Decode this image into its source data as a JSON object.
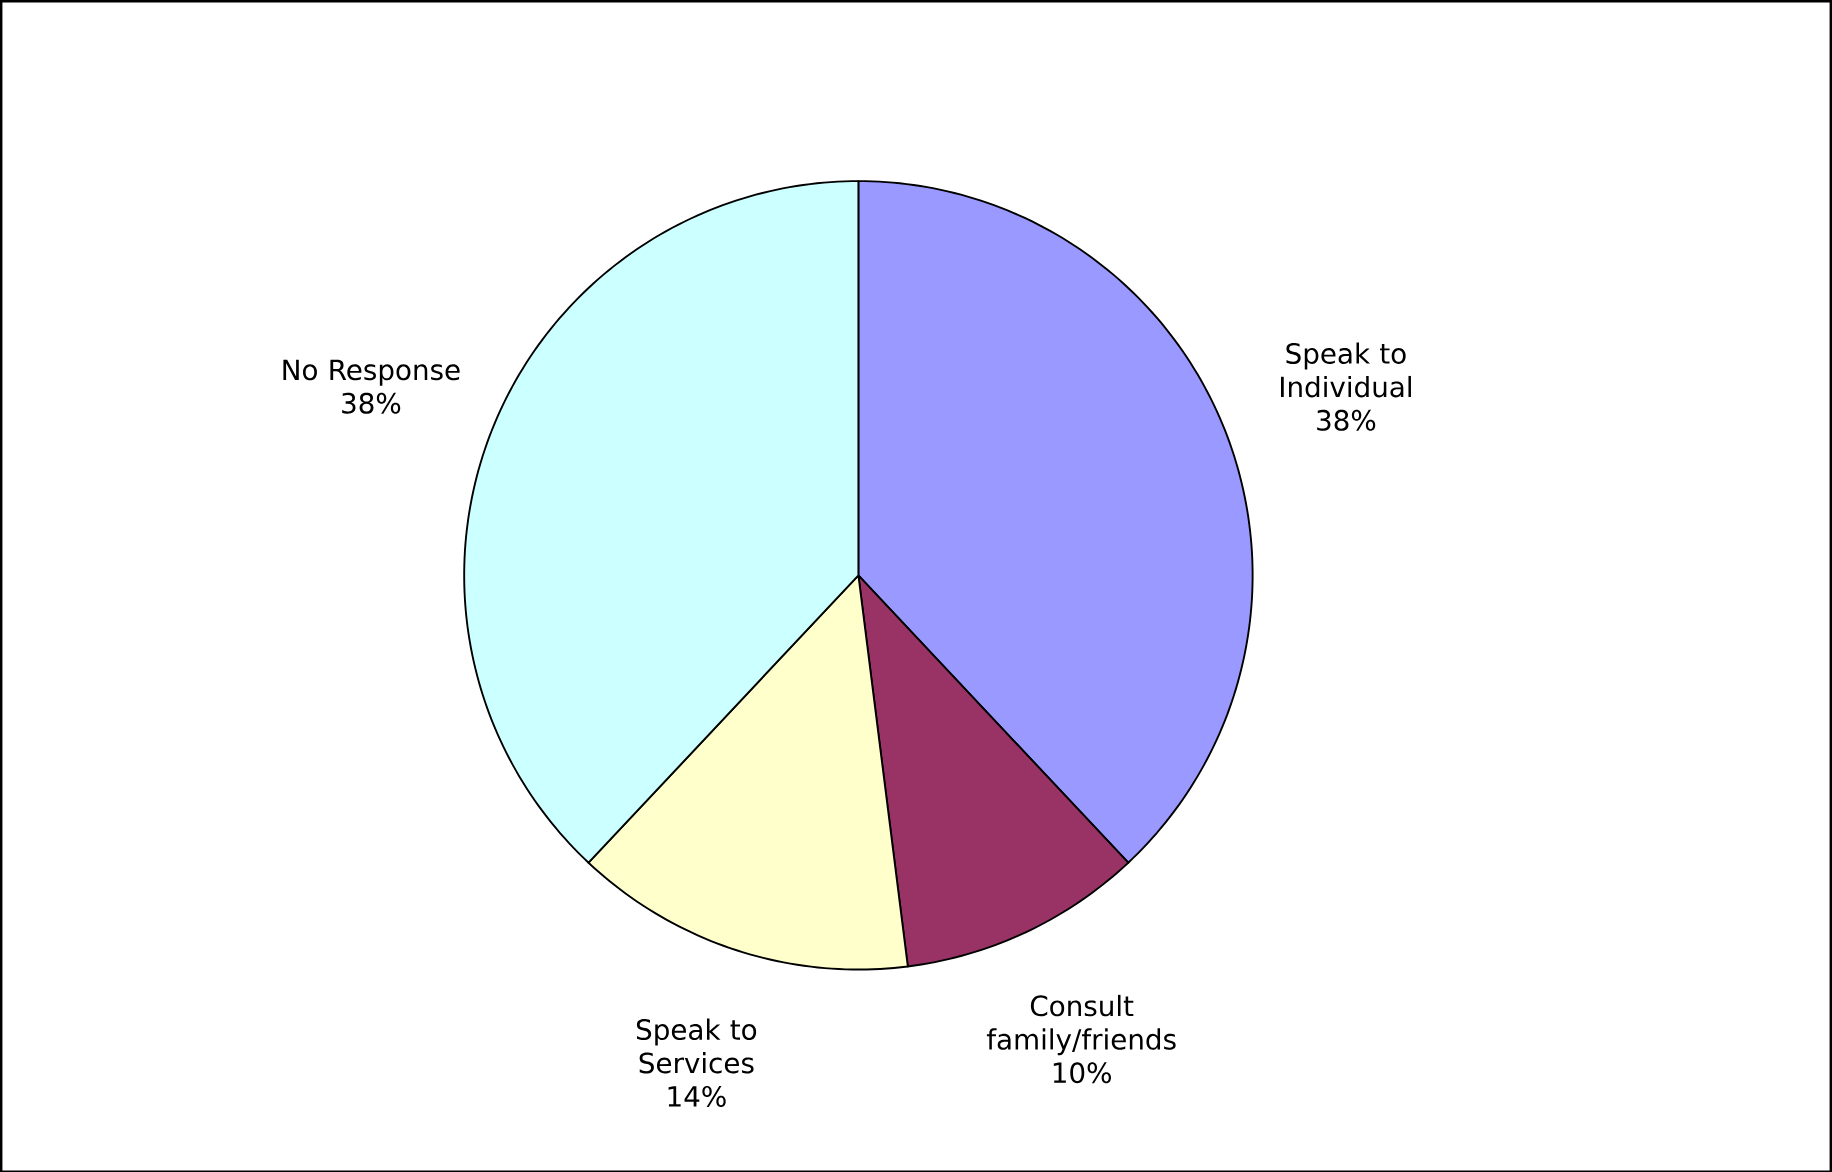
{
  "chart_data": {
    "type": "pie",
    "categories": [
      "Speak to Individual",
      "Consult family/friends",
      "Speak to Services",
      "No Response"
    ],
    "values": [
      38,
      10,
      14,
      38
    ],
    "value_labels": [
      "38%",
      "10%",
      "14%",
      "38%"
    ],
    "colors": [
      "#9999ff",
      "#993366",
      "#ffffcc",
      "#ccffff"
    ]
  }
}
